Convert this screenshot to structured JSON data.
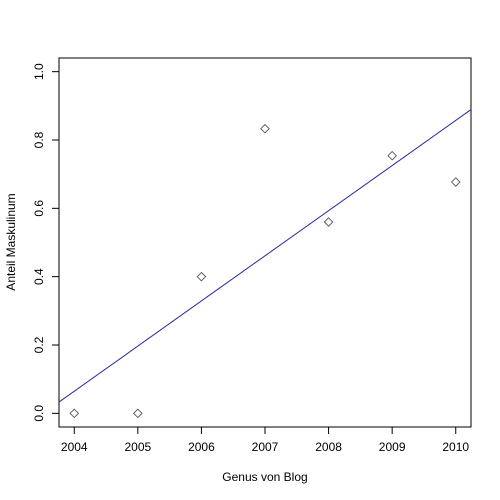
{
  "chart_data": {
    "type": "scatter",
    "x_label": "Genus von Blog",
    "y_label": "Anteil Maskulinum",
    "x": [
      2004,
      2005,
      2006,
      2007,
      2008,
      2009,
      2010
    ],
    "values": [
      0,
      0,
      0.4,
      0.833,
      0.56,
      0.754,
      0.677
    ],
    "point_color": "#555555",
    "fit": {
      "x": [
        2003.76,
        2010.24
      ],
      "values": [
        0.033,
        0.889
      ],
      "color": "#2a2aa0"
    },
    "xlim": [
      2003.76,
      2010.24
    ],
    "ylim": [
      -0.04,
      1.04
    ],
    "xticks": [
      2004,
      2005,
      2006,
      2007,
      2008,
      2009,
      2010
    ],
    "yticks": [
      {
        "value": 0,
        "label": "0.0"
      },
      0.2,
      0.4,
      0.6,
      0.8,
      {
        "value": 1,
        "label": "1.0"
      }
    ]
  }
}
